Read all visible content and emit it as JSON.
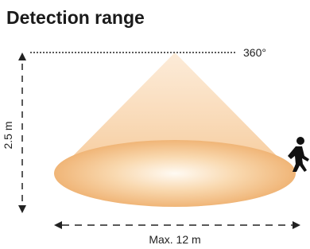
{
  "title": "Detection range",
  "angle_label": "360°",
  "height_label": "2.5 m",
  "range_label": "Max. 12 m"
}
